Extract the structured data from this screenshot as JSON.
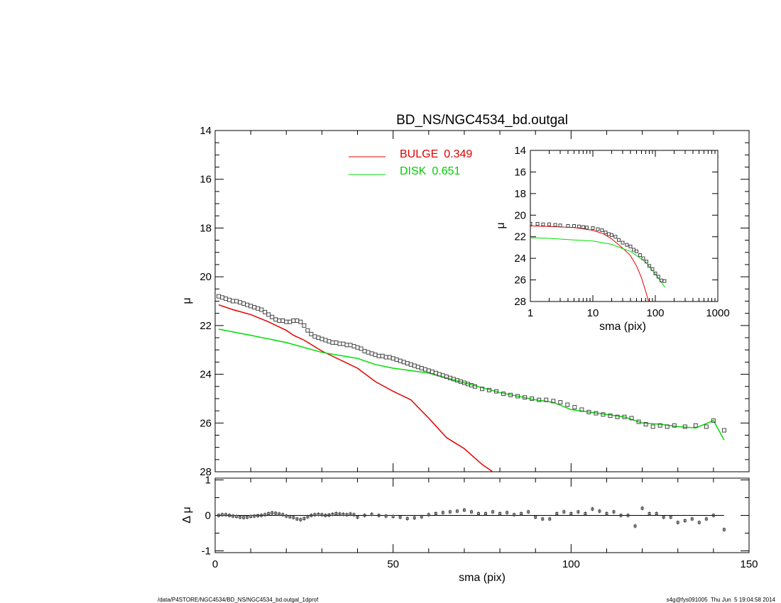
{
  "chart_data": [
    {
      "type": "line",
      "panel": "main",
      "title": "BD_NS/NGC4534_bd.outgal",
      "xlabel": "sma (pix)",
      "ylabel": "μ",
      "xlim": [
        0,
        150
      ],
      "ylim": [
        28,
        14
      ],
      "y_inverted": true,
      "xticks": [
        "0",
        "50",
        "100",
        "150"
      ],
      "yticks": [
        "14",
        "16",
        "18",
        "20",
        "22",
        "24",
        "26",
        "28"
      ],
      "legend": [
        {
          "label": "BULGE",
          "value": "0.349",
          "color": "#e00000"
        },
        {
          "label": "DISK",
          "value": "0.651",
          "color": "#00dd00"
        }
      ],
      "series": [
        {
          "name": "BULGE",
          "color": "#e00000",
          "x": [
            1,
            5,
            10,
            15,
            20,
            22,
            25,
            30,
            35,
            40,
            45,
            50,
            55,
            60,
            65,
            70,
            75,
            78
          ],
          "y": [
            21.15,
            21.35,
            21.55,
            21.85,
            22.2,
            22.4,
            22.6,
            23.05,
            23.4,
            23.75,
            24.3,
            24.7,
            25.05,
            25.8,
            26.6,
            27.05,
            27.7,
            28.0
          ]
        },
        {
          "name": "DISK",
          "color": "#00dd00",
          "x": [
            1,
            10,
            20,
            30,
            40,
            45,
            50,
            60,
            70,
            80,
            90,
            95,
            100,
            105,
            110,
            115,
            120,
            125,
            130,
            135,
            140,
            143
          ],
          "y": [
            22.15,
            22.4,
            22.7,
            23.1,
            23.35,
            23.6,
            23.75,
            23.95,
            24.35,
            24.75,
            25.05,
            25.15,
            25.45,
            25.55,
            25.65,
            25.75,
            26.0,
            26.05,
            26.15,
            26.2,
            25.9,
            26.7
          ]
        },
        {
          "name": "data",
          "marker": "square",
          "x": [
            1,
            2,
            3,
            4,
            5,
            6,
            7,
            8,
            9,
            10,
            11,
            12,
            13,
            14,
            15,
            16,
            17,
            18,
            19,
            20,
            21,
            22,
            23,
            24,
            25,
            26,
            27,
            28,
            29,
            30,
            31,
            32,
            33,
            34,
            35,
            36,
            37,
            38,
            39,
            40,
            41,
            42,
            43,
            44,
            45,
            46,
            47,
            48,
            49,
            50,
            51,
            52,
            53,
            54,
            55,
            56,
            57,
            58,
            59,
            60,
            61,
            62,
            63,
            64,
            65,
            66,
            67,
            68,
            69,
            70,
            71,
            72,
            73,
            75,
            77,
            79,
            81,
            83,
            85,
            87,
            89,
            91,
            93,
            95,
            97,
            99,
            101,
            103,
            105,
            107,
            109,
            111,
            113,
            115,
            117,
            119,
            121,
            123,
            125,
            127,
            129,
            132,
            135,
            138,
            140,
            143
          ],
          "y": [
            20.8,
            20.85,
            20.9,
            20.95,
            21.0,
            21.0,
            21.05,
            21.1,
            21.15,
            21.2,
            21.25,
            21.3,
            21.35,
            21.45,
            21.55,
            21.65,
            21.75,
            21.8,
            21.8,
            21.85,
            21.85,
            21.8,
            21.8,
            21.85,
            22.0,
            22.2,
            22.35,
            22.45,
            22.5,
            22.55,
            22.6,
            22.65,
            22.7,
            22.7,
            22.75,
            22.75,
            22.8,
            22.8,
            22.85,
            22.9,
            22.95,
            23.05,
            23.1,
            23.15,
            23.2,
            23.25,
            23.25,
            23.3,
            23.3,
            23.35,
            23.4,
            23.45,
            23.5,
            23.55,
            23.6,
            23.65,
            23.7,
            23.75,
            23.8,
            23.85,
            23.9,
            23.95,
            24.0,
            24.05,
            24.1,
            24.15,
            24.2,
            24.25,
            24.3,
            24.35,
            24.4,
            24.45,
            24.5,
            24.6,
            24.65,
            24.7,
            24.8,
            24.85,
            24.9,
            24.95,
            25.0,
            25.05,
            25.05,
            25.1,
            25.15,
            25.25,
            25.35,
            25.45,
            25.55,
            25.6,
            25.65,
            25.7,
            25.75,
            25.75,
            25.8,
            25.95,
            26.05,
            26.15,
            26.1,
            26.15,
            26.1,
            26.15,
            26.1,
            26.15,
            25.9,
            26.3
          ]
        }
      ]
    },
    {
      "type": "line",
      "panel": "residual",
      "xlabel": "sma (pix)",
      "ylabel": "Δ μ",
      "xlim": [
        0,
        150
      ],
      "ylim": [
        -1.05,
        1.05
      ],
      "yticks": [
        "1",
        "0",
        "-1"
      ],
      "series": [
        {
          "name": "residual",
          "marker": "square",
          "x": [
            1,
            2,
            3,
            4,
            5,
            6,
            7,
            8,
            9,
            10,
            11,
            12,
            13,
            14,
            15,
            16,
            17,
            18,
            19,
            20,
            21,
            22,
            23,
            24,
            25,
            26,
            27,
            28,
            29,
            30,
            31,
            32,
            33,
            34,
            35,
            36,
            37,
            38,
            39,
            40,
            42,
            44,
            46,
            48,
            50,
            52,
            54,
            56,
            58,
            60,
            62,
            64,
            66,
            68,
            70,
            72,
            74,
            76,
            78,
            80,
            82,
            84,
            86,
            88,
            90,
            92,
            94,
            96,
            98,
            100,
            102,
            104,
            106,
            108,
            110,
            112,
            114,
            116,
            118,
            120,
            122,
            124,
            126,
            128,
            130,
            132,
            134,
            136,
            138,
            140,
            143
          ],
          "y": [
            0.0,
            0.02,
            0.02,
            0.0,
            -0.02,
            -0.03,
            -0.05,
            -0.06,
            -0.05,
            -0.03,
            -0.02,
            -0.01,
            0.0,
            0.02,
            0.05,
            0.07,
            0.06,
            0.04,
            0.02,
            -0.02,
            -0.04,
            -0.06,
            -0.1,
            -0.12,
            -0.09,
            -0.04,
            0.0,
            0.02,
            0.03,
            0.02,
            0.0,
            0.01,
            0.03,
            0.05,
            0.04,
            0.03,
            0.02,
            0.04,
            0.02,
            -0.05,
            0.0,
            0.03,
            0.0,
            -0.02,
            -0.03,
            -0.05,
            -0.09,
            -0.07,
            -0.04,
            0.02,
            0.05,
            0.08,
            0.1,
            0.12,
            0.15,
            0.1,
            0.05,
            0.05,
            0.1,
            0.05,
            0.08,
            0.02,
            0.05,
            0.1,
            -0.05,
            -0.1,
            -0.1,
            0.05,
            0.1,
            0.05,
            0.1,
            0.05,
            0.18,
            0.12,
            0.05,
            0.1,
            0.0,
            0.0,
            -0.3,
            0.2,
            0.05,
            0.05,
            -0.05,
            -0.05,
            -0.2,
            -0.15,
            -0.1,
            -0.2,
            -0.1,
            0.0,
            -0.4
          ]
        }
      ]
    },
    {
      "type": "line",
      "panel": "inset",
      "xlabel": "sma (pix)",
      "ylabel": "μ",
      "x_scale": "log",
      "xlim": [
        1,
        1000
      ],
      "ylim": [
        28,
        14
      ],
      "y_inverted": true,
      "xticks": [
        "1",
        "10",
        "100",
        "1000"
      ],
      "yticks": [
        "14",
        "16",
        "18",
        "20",
        "22",
        "24",
        "26",
        "28"
      ],
      "series": [
        {
          "name": "BULGE",
          "color": "#e00000",
          "x": [
            1,
            2,
            5,
            10,
            15,
            20,
            30,
            40,
            50,
            60,
            70,
            78
          ],
          "y": [
            21.0,
            21.05,
            21.15,
            21.4,
            21.75,
            22.2,
            23.05,
            23.75,
            24.7,
            25.8,
            27.05,
            28.0
          ]
        },
        {
          "name": "DISK",
          "color": "#00dd00",
          "x": [
            1,
            2,
            5,
            10,
            20,
            30,
            40,
            50,
            70,
            100,
            143
          ],
          "y": [
            22.1,
            22.15,
            22.3,
            22.4,
            22.7,
            23.1,
            23.35,
            23.75,
            24.35,
            25.45,
            26.7
          ]
        },
        {
          "name": "data",
          "marker": "square",
          "x": [
            1,
            1.3,
            1.6,
            2,
            2.5,
            3,
            4,
            5,
            6,
            7,
            8,
            10,
            12,
            14,
            16,
            18,
            20,
            23,
            26,
            30,
            35,
            40,
            45,
            50,
            57,
            64,
            72,
            80,
            90,
            100,
            112,
            125,
            140
          ],
          "y": [
            20.8,
            20.8,
            20.85,
            20.85,
            20.9,
            20.95,
            21.0,
            21.0,
            21.05,
            21.1,
            21.15,
            21.2,
            21.3,
            21.4,
            21.6,
            21.75,
            21.85,
            22.0,
            22.3,
            22.55,
            22.75,
            22.9,
            23.2,
            23.35,
            23.7,
            24.0,
            24.3,
            24.7,
            25.0,
            25.4,
            25.7,
            26.05,
            26.1
          ]
        }
      ]
    }
  ],
  "footer": {
    "left": "/data/P4STORE/NGC4534/BD_NS/NGC4534_bd.outgal_1dprof",
    "right": "s4g@fys091005  Thu Jun  5 19:04:58 2014"
  }
}
